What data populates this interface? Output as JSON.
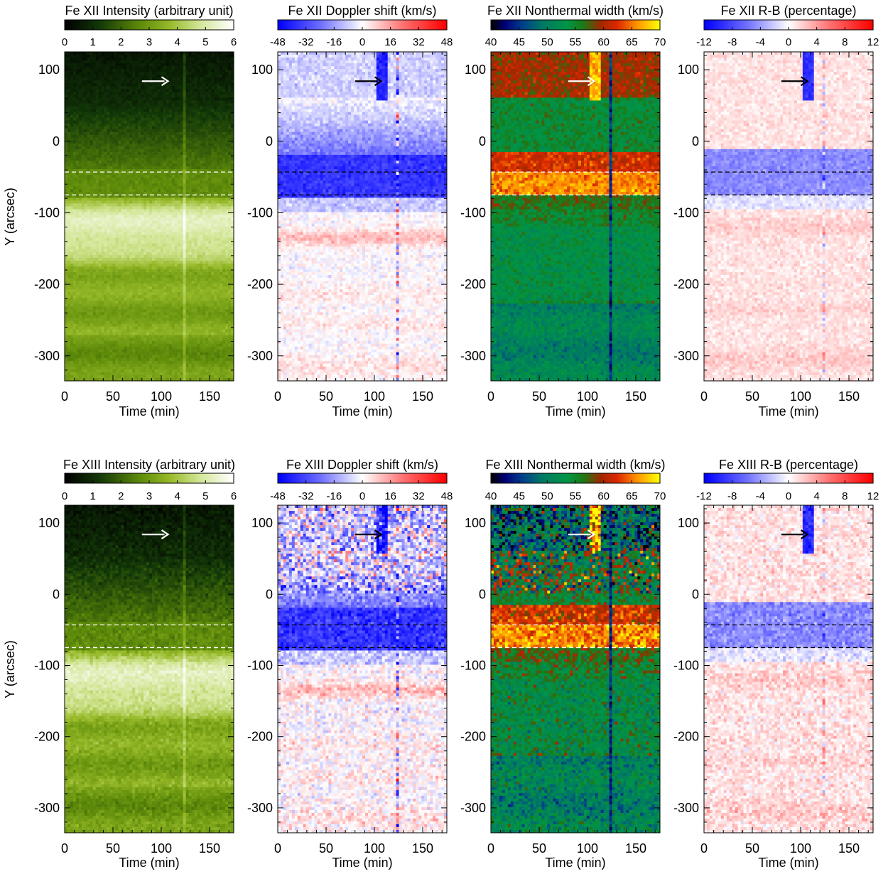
{
  "figure": {
    "rows": [
      {
        "ion": "Fe XII",
        "panels": [
          {
            "kind": "intensity",
            "title": "Fe XII Intensity (arbitrary unit)",
            "colormap": "green",
            "colorbar": {
              "range": [
                0,
                6
              ],
              "ticks": [
                0,
                1,
                2,
                3,
                4,
                5,
                6
              ],
              "tick_labels": [
                "0",
                "1",
                "2",
                "3",
                "4",
                "5",
                "6"
              ]
            },
            "arrow_color": "#ffffff",
            "dash_color": "#ffffff",
            "show_ylabel": true
          },
          {
            "kind": "doppler",
            "title": "Fe XII Doppler shift (km/s)",
            "colormap": "bwr",
            "colorbar": {
              "range": [
                -48,
                48
              ],
              "ticks": [
                -48,
                -32,
                -16,
                0,
                16,
                32,
                48
              ],
              "tick_labels": [
                "-48",
                "-32",
                "-16",
                "0",
                "16",
                "32",
                "48"
              ]
            },
            "arrow_color": "#000000",
            "dash_color": "#000000",
            "show_ylabel": false
          },
          {
            "kind": "width",
            "title": "Fe XII Nonthermal width (km/s)",
            "colormap": "ncar",
            "colorbar": {
              "range": [
                40,
                70
              ],
              "ticks": [
                40,
                45,
                50,
                55,
                60,
                65,
                70
              ],
              "tick_labels": [
                "40",
                "45",
                "50",
                "55",
                "60",
                "65",
                "70"
              ]
            },
            "arrow_color": "#ffffff",
            "dash_color": "#ffffff",
            "show_ylabel": false
          },
          {
            "kind": "rb",
            "title": "Fe XII R-B (percentage)",
            "colormap": "bwr",
            "colorbar": {
              "range": [
                -12,
                12
              ],
              "ticks": [
                -12,
                -8,
                -4,
                0,
                4,
                8,
                12
              ],
              "tick_labels": [
                "-12",
                "-8",
                "-4",
                "0",
                "4",
                "8",
                "12"
              ]
            },
            "arrow_color": "#000000",
            "dash_color": "#000000",
            "show_ylabel": false
          }
        ]
      },
      {
        "ion": "Fe XIII",
        "panels": [
          {
            "kind": "intensity",
            "title": "Fe XIII Intensity (arbitrary unit)",
            "colormap": "green",
            "colorbar": {
              "range": [
                0,
                6
              ],
              "ticks": [
                0,
                1,
                2,
                3,
                4,
                5,
                6
              ],
              "tick_labels": [
                "0",
                "1",
                "2",
                "3",
                "4",
                "5",
                "6"
              ]
            },
            "arrow_color": "#ffffff",
            "dash_color": "#ffffff",
            "show_ylabel": true
          },
          {
            "kind": "doppler",
            "title": "Fe XIII Doppler shift (km/s)",
            "colormap": "bwr",
            "colorbar": {
              "range": [
                -48,
                48
              ],
              "ticks": [
                -48,
                -32,
                -16,
                0,
                16,
                32,
                48
              ],
              "tick_labels": [
                "-48",
                "-32",
                "-16",
                "0",
                "16",
                "32",
                "48"
              ]
            },
            "arrow_color": "#000000",
            "dash_color": "#000000",
            "show_ylabel": false
          },
          {
            "kind": "width",
            "title": "Fe XIII Nonthermal width (km/s)",
            "colormap": "ncar",
            "colorbar": {
              "range": [
                40,
                70
              ],
              "ticks": [
                40,
                45,
                50,
                55,
                60,
                65,
                70
              ],
              "tick_labels": [
                "40",
                "45",
                "50",
                "55",
                "60",
                "65",
                "70"
              ]
            },
            "arrow_color": "#ffffff",
            "dash_color": "#ffffff",
            "show_ylabel": false
          },
          {
            "kind": "rb",
            "title": "Fe XIII R-B (percentage)",
            "colormap": "bwr",
            "colorbar": {
              "range": [
                -12,
                12
              ],
              "ticks": [
                -12,
                -8,
                -4,
                0,
                4,
                8,
                12
              ],
              "tick_labels": [
                "-12",
                "-8",
                "-4",
                "0",
                "4",
                "8",
                "12"
              ]
            },
            "arrow_color": "#000000",
            "dash_color": "#000000",
            "show_ylabel": false
          }
        ]
      }
    ]
  },
  "chart_data": {
    "type": "heatmap",
    "xlabel": "Time (min)",
    "ylabel": "Y (arcsec)",
    "xlim": [
      0,
      175
    ],
    "ylim": [
      -335,
      125
    ],
    "x_ticks": [
      0,
      50,
      100,
      150
    ],
    "x_tick_labels": [
      "0",
      "50",
      "100",
      "150"
    ],
    "y_ticks": [
      100,
      0,
      -100,
      -200,
      -300
    ],
    "y_tick_labels": [
      "100",
      "0",
      "-100",
      "-200",
      "-300"
    ],
    "dashed_lines_y": [
      -43,
      -75
    ],
    "arrow": {
      "x_start": 80,
      "x_end": 107,
      "y": 84
    },
    "vertical_streak_time": 124,
    "jet_time": 108
  }
}
